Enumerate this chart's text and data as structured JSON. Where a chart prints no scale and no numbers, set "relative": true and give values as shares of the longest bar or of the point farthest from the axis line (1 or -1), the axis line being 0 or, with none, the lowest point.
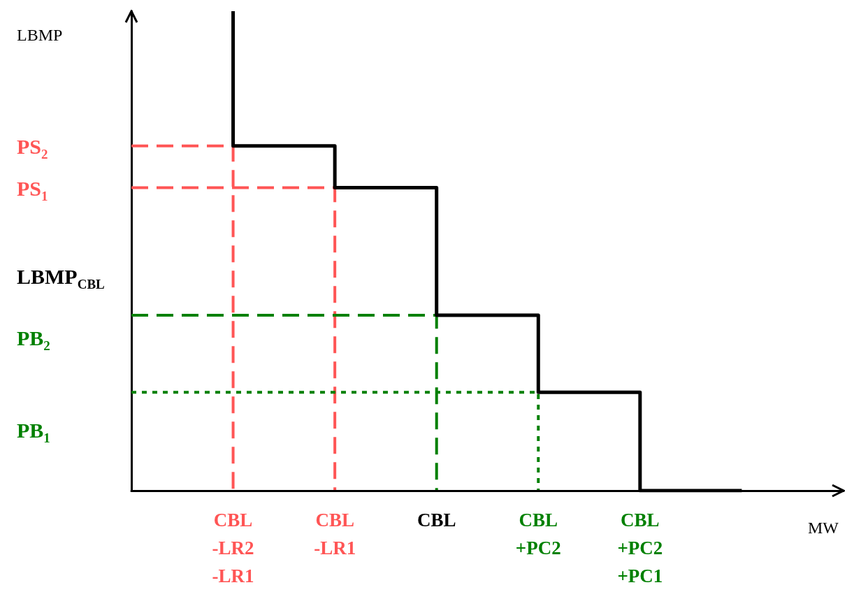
{
  "chart_data": {
    "type": "step",
    "relative": true,
    "xlabel": "MW",
    "ylabel": "LBMP",
    "marker": "none",
    "categories": [
      null,
      "CBL\n-LR2\n-LR1",
      "CBL\n-LR1",
      "CBL",
      "CBL\n+PC2",
      "CBL\n+PC2\n+PC1",
      null,
      null
    ],
    "series": [
      {
        "color": "#000000",
        "line_style": "solid",
        "values": [
          null,
          1,
          0.719,
          0.632,
          0.366,
          0.205,
          0,
          null
        ]
      },
      {
        "color": "#ff5555",
        "line_style": "dashed",
        "values": [
          0.719,
          0,
          null,
          null,
          null,
          null,
          null,
          null
        ]
      },
      {
        "color": "#ff5555",
        "line_style": "dashed",
        "values": [
          0.632,
          0.632,
          0,
          null,
          null,
          null,
          null,
          null
        ]
      },
      {
        "color": "#008000",
        "line_style": "dashed",
        "values": [
          0.366,
          0.366,
          0.366,
          0,
          null,
          null,
          null,
          null
        ]
      },
      {
        "color": "#008000",
        "line_style": "dotted",
        "values": [
          0.205,
          0.205,
          0.205,
          0.205,
          0,
          null,
          null,
          null
        ]
      }
    ],
    "annotations": [
      "PS$_{2}$",
      "PS$_{1}$",
      "LBMP$_{CBL}$",
      "PB$_{2}$",
      "PB$_{1}$"
    ]
  }
}
